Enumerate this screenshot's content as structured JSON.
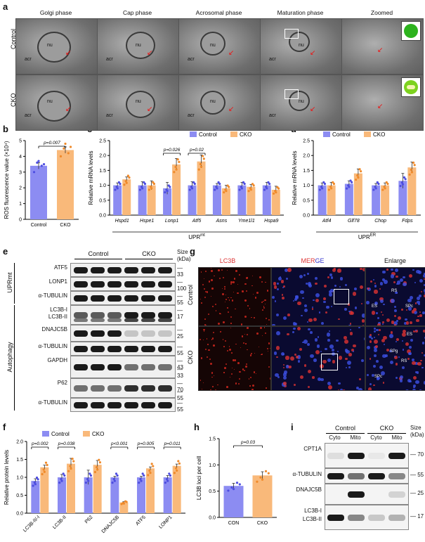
{
  "panels": {
    "a": "a",
    "b": "b",
    "c": "c",
    "d": "d",
    "e": "e",
    "f": "f",
    "g": "g",
    "h": "h",
    "i": "i"
  },
  "panel_a": {
    "columns": [
      "Golgi phase",
      "Cap phase",
      "Acrosomal phase",
      "Maturation phase",
      "Zoomed"
    ],
    "rows": [
      "Control",
      "CKO"
    ],
    "image_labels": {
      "nu": "nu",
      "acr": "acr"
    }
  },
  "chart_data": [
    {
      "id": "b",
      "type": "bar",
      "categories": [
        "Control",
        "CKO"
      ],
      "values": [
        3.4,
        4.4
      ],
      "errors": [
        0.2,
        0.2
      ],
      "points": [
        [
          3.0,
          3.4,
          3.6,
          3.5,
          3.7
        ],
        [
          4.0,
          4.2,
          4.5,
          4.6,
          4.8
        ]
      ],
      "ylabel": "ROS fluorescence value (×10⁴)",
      "ylim": [
        0,
        5
      ],
      "yticks": [
        0,
        1,
        2,
        3,
        4,
        5
      ],
      "annotations": [
        {
          "text": "p=0.007",
          "between": [
            "Control",
            "CKO"
          ]
        }
      ],
      "colors": [
        "#8c8cf2",
        "#f9b97a"
      ]
    },
    {
      "id": "c",
      "type": "bar",
      "categories": [
        "Hspd1",
        "Hspe1",
        "Lonp1",
        "Atf5",
        "Asns",
        "Yme1l1",
        "Hspa9"
      ],
      "series": [
        {
          "name": "Control",
          "values": [
            1.0,
            1.0,
            0.9,
            1.0,
            1.0,
            1.0,
            1.0
          ],
          "errors": [
            0.08,
            0.12,
            0.2,
            0.12,
            0.06,
            0.1,
            0.1
          ]
        },
        {
          "name": "CKO",
          "values": [
            1.2,
            1.0,
            1.7,
            1.8,
            0.9,
            0.95,
            0.85
          ],
          "errors": [
            0.08,
            0.15,
            0.2,
            0.22,
            0.1,
            0.08,
            0.12
          ]
        }
      ],
      "ylabel": "Relative mRNA levels",
      "xgroup_label": "UPR",
      "xgroup_sup": "mt",
      "ylim": [
        0,
        2.5
      ],
      "yticks": [
        0.0,
        0.5,
        1.0,
        1.5,
        2.0,
        2.5
      ],
      "annotations": [
        {
          "text": "p=0.026",
          "category": "Lonp1"
        },
        {
          "text": "p=0.02",
          "category": "Atf5"
        }
      ],
      "colors": [
        "#8c8cf2",
        "#f9b97a"
      ]
    },
    {
      "id": "d",
      "type": "bar",
      "categories": [
        "Atf4",
        "Glf78",
        "Chop",
        "Fdps"
      ],
      "series": [
        {
          "name": "Control",
          "values": [
            1.0,
            1.05,
            1.0,
            1.15
          ],
          "errors": [
            0.08,
            0.1,
            0.06,
            0.25
          ]
        },
        {
          "name": "CKO",
          "values": [
            1.0,
            1.4,
            1.0,
            1.6
          ],
          "errors": [
            0.1,
            0.15,
            0.08,
            0.18
          ]
        }
      ],
      "ylabel": "Relative mRNA levels",
      "xgroup_label": "UPR",
      "xgroup_sup": "ER",
      "ylim": [
        0,
        2.5
      ],
      "yticks": [
        0.0,
        0.5,
        1.0,
        1.5,
        2.0,
        2.5
      ],
      "colors": [
        "#8c8cf2",
        "#f9b97a"
      ]
    },
    {
      "id": "f",
      "type": "bar",
      "categories": [
        "LC3B-II/-I",
        "LC3B-II",
        "P62",
        "DNAJC5B",
        "ATF5",
        "LONP1"
      ],
      "series": [
        {
          "name": "Control",
          "values": [
            0.9,
            1.0,
            1.0,
            1.0,
            1.0,
            1.0
          ],
          "errors": [
            0.06,
            0.08,
            0.2,
            0.03,
            0.03,
            0.05
          ]
        },
        {
          "name": "CKO",
          "values": [
            1.28,
            1.38,
            1.35,
            0.3,
            1.25,
            1.32
          ],
          "errors": [
            0.06,
            0.15,
            0.12,
            0.02,
            0.04,
            0.05
          ]
        }
      ],
      "ylabel": "Relative protein levels",
      "ylim": [
        0,
        2.0
      ],
      "yticks": [
        0.0,
        0.5,
        1.0,
        1.5,
        2.0
      ],
      "annotations": [
        {
          "text": "p=0.002",
          "category": "LC3B-II/-I"
        },
        {
          "text": "p=0.038",
          "category": "LC3B-II"
        },
        {
          "text": "p<0.001",
          "category": "DNAJC5B"
        },
        {
          "text": "p=0.005",
          "category": "ATF5"
        },
        {
          "text": "p=0.011",
          "category": "LONP1"
        }
      ],
      "colors": [
        "#8c8cf2",
        "#f9b97a"
      ]
    },
    {
      "id": "h",
      "type": "bar",
      "categories": [
        "CON",
        "CKO"
      ],
      "values": [
        0.6,
        0.8
      ],
      "errors": [
        0.05,
        0.07
      ],
      "ylabel": "LC3B loci per cell",
      "ylim": [
        0,
        1.5
      ],
      "yticks": [
        0.0,
        0.5,
        1.0,
        1.5
      ],
      "annotations": [
        {
          "text": "p=0.03",
          "between": [
            "CON",
            "CKO"
          ]
        }
      ],
      "colors": [
        "#8c8cf2",
        "#f9b97a"
      ]
    }
  ],
  "panel_e": {
    "groups": [
      "Control",
      "CKO"
    ],
    "size_header": "Size (kDa)",
    "side_labels": [
      "UPRmt",
      "Autophagy"
    ],
    "blots": [
      {
        "labels": [
          "ATF5"
        ],
        "sizes": [
          "33"
        ]
      },
      {
        "labels": [
          "LONP1"
        ],
        "sizes": [
          "100"
        ]
      },
      {
        "labels": [
          "α-TUBULIN"
        ],
        "sizes": [
          "55"
        ]
      },
      {
        "labels": [
          "LC3B-I",
          "LC3B-II"
        ],
        "sizes": [
          "17"
        ]
      },
      {
        "labels": [
          "DNAJC5B"
        ],
        "sizes": [
          "25"
        ]
      },
      {
        "labels": [
          "α-TUBULIN"
        ],
        "sizes": [
          "55"
        ]
      },
      {
        "labels": [
          "GAPDH"
        ],
        "sizes": [
          "43",
          "33"
        ]
      },
      {
        "labels": [
          "P62"
        ],
        "sizes": [
          "70",
          "55"
        ]
      },
      {
        "labels": [
          "α-TUBULIN"
        ],
        "sizes": [
          "55"
        ]
      }
    ]
  },
  "panel_g": {
    "titles": [
      "LC3B",
      "MERGE",
      "Enlarge"
    ],
    "rows": [
      "Control",
      "CKO"
    ],
    "cell_labels": [
      "RS",
      "ES",
      "SPc",
      "SPg"
    ]
  },
  "panel_i": {
    "groups": [
      "Control",
      "CKO"
    ],
    "fractions": [
      "Cyto",
      "Mito",
      "Cyto",
      "Mito"
    ],
    "size_header": "Size (kDa)",
    "blots": [
      {
        "labels": [
          "CPT1A"
        ],
        "sizes": [
          "70"
        ]
      },
      {
        "labels": [
          "α-TUBULIN"
        ],
        "sizes": [
          "55"
        ]
      },
      {
        "labels": [
          "DNAJC5B"
        ],
        "sizes": [
          "25"
        ]
      },
      {
        "labels": [
          "LC3B-I",
          "LC3B-II"
        ],
        "sizes": [
          "17"
        ]
      }
    ]
  }
}
